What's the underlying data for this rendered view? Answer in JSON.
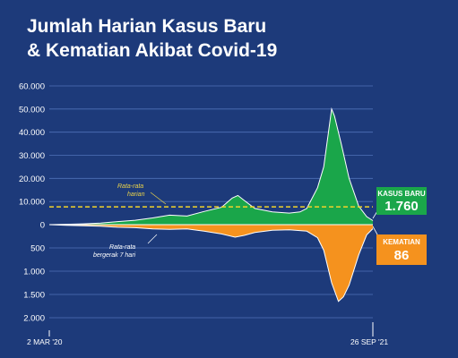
{
  "header": {
    "title_line1": "Jumlah Harian Kasus Baru",
    "title_line2": "& Kematian Akibat Covid-19"
  },
  "colors": {
    "background": "#1d3a7a",
    "cases": "#1aa64a",
    "deaths": "#f5921e",
    "avg_line": "#ffffff",
    "daily_avg_line": "#f2d32b"
  },
  "chart_data": {
    "type": "area",
    "x_start_label": "2 MAR '20",
    "x_end_label": "26 SEP '21",
    "x_start": "2020-03-02",
    "x_end": "2021-09-26",
    "upper_axis": {
      "series": "cases",
      "ticks": [
        "60.000",
        "50.000",
        "40.000",
        "30.000",
        "20.000",
        "10.000",
        "0"
      ],
      "tick_values": [
        60000,
        50000,
        40000,
        30000,
        20000,
        10000,
        0
      ],
      "ylim": [
        0,
        60000
      ]
    },
    "lower_axis": {
      "series": "deaths",
      "ticks": [
        "500",
        "1.000",
        "1.500",
        "2.000"
      ],
      "tick_values": [
        500,
        1000,
        1500,
        2000
      ],
      "ylim": [
        0,
        2000
      ]
    },
    "cases_series": [
      {
        "x": "2020-03-02",
        "y": 0
      },
      {
        "x": "2020-04-01",
        "y": 150
      },
      {
        "x": "2020-05-01",
        "y": 350
      },
      {
        "x": "2020-06-01",
        "y": 650
      },
      {
        "x": "2020-07-01",
        "y": 1300
      },
      {
        "x": "2020-08-01",
        "y": 1900
      },
      {
        "x": "2020-09-01",
        "y": 2900
      },
      {
        "x": "2020-10-01",
        "y": 4100
      },
      {
        "x": "2020-11-01",
        "y": 3700
      },
      {
        "x": "2020-12-01",
        "y": 5700
      },
      {
        "x": "2021-01-01",
        "y": 7500
      },
      {
        "x": "2021-01-20",
        "y": 11500
      },
      {
        "x": "2021-01-30",
        "y": 12600
      },
      {
        "x": "2021-02-10",
        "y": 10500
      },
      {
        "x": "2021-03-01",
        "y": 7000
      },
      {
        "x": "2021-04-01",
        "y": 5500
      },
      {
        "x": "2021-05-01",
        "y": 5000
      },
      {
        "x": "2021-05-20",
        "y": 5500
      },
      {
        "x": "2021-06-01",
        "y": 7000
      },
      {
        "x": "2021-06-20",
        "y": 16000
      },
      {
        "x": "2021-07-01",
        "y": 25000
      },
      {
        "x": "2021-07-15",
        "y": 50000
      },
      {
        "x": "2021-07-20",
        "y": 47000
      },
      {
        "x": "2021-08-01",
        "y": 35000
      },
      {
        "x": "2021-08-15",
        "y": 20000
      },
      {
        "x": "2021-09-01",
        "y": 8000
      },
      {
        "x": "2021-09-15",
        "y": 3500
      },
      {
        "x": "2021-09-26",
        "y": 1760
      }
    ],
    "deaths_series": [
      {
        "x": "2020-03-02",
        "y": 0
      },
      {
        "x": "2020-04-01",
        "y": 15
      },
      {
        "x": "2020-05-01",
        "y": 25
      },
      {
        "x": "2020-06-01",
        "y": 35
      },
      {
        "x": "2020-07-01",
        "y": 55
      },
      {
        "x": "2020-08-01",
        "y": 65
      },
      {
        "x": "2020-09-01",
        "y": 90
      },
      {
        "x": "2020-10-01",
        "y": 100
      },
      {
        "x": "2020-11-01",
        "y": 90
      },
      {
        "x": "2020-12-01",
        "y": 140
      },
      {
        "x": "2021-01-01",
        "y": 200
      },
      {
        "x": "2021-01-25",
        "y": 270
      },
      {
        "x": "2021-02-10",
        "y": 230
      },
      {
        "x": "2021-03-01",
        "y": 170
      },
      {
        "x": "2021-04-01",
        "y": 120
      },
      {
        "x": "2021-05-01",
        "y": 110
      },
      {
        "x": "2021-06-01",
        "y": 140
      },
      {
        "x": "2021-06-20",
        "y": 280
      },
      {
        "x": "2021-07-01",
        "y": 550
      },
      {
        "x": "2021-07-15",
        "y": 1250
      },
      {
        "x": "2021-07-27",
        "y": 1650
      },
      {
        "x": "2021-08-05",
        "y": 1550
      },
      {
        "x": "2021-08-15",
        "y": 1300
      },
      {
        "x": "2021-09-01",
        "y": 650
      },
      {
        "x": "2021-09-15",
        "y": 220
      },
      {
        "x": "2021-09-26",
        "y": 86
      }
    ],
    "daily_average": {
      "label_line1": "Rata-rata",
      "label_line2": "harian",
      "cases_value": 7700,
      "deaths_value": 0
    },
    "moving_average_label_line1": "Rata-rata",
    "moving_average_label_line2": "bergerak 7 hari",
    "latest": {
      "cases_label": "KASUS BARU",
      "cases_value": "1.760",
      "deaths_label": "KEMATIAN",
      "deaths_value": "86"
    }
  }
}
